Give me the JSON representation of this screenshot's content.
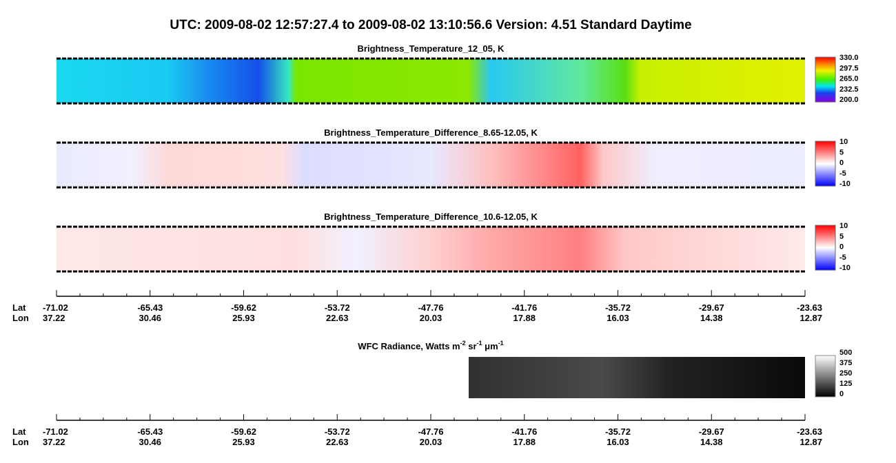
{
  "header": {
    "title": "UTC:  2009-08-02   12:57:27.4  to  2009-08-02   13:10:56.6    Version: 4.51  Standard Daytime"
  },
  "panels": [
    {
      "title": "Brightness_Temperature_12_05, K",
      "colorbar": [
        "330.0",
        "297.5",
        "265.0",
        "232.5",
        "200.0"
      ]
    },
    {
      "title": "Brightness_Temperature_Difference_8.65-12.05, K",
      "colorbar": [
        "10",
        "5",
        "0",
        "-5",
        "-10"
      ]
    },
    {
      "title": "Brightness_Temperature_Difference_10.6-12.05, K",
      "colorbar": [
        "10",
        "5",
        "0",
        "-5",
        "-10"
      ]
    }
  ],
  "track": {
    "lat_label": "Lat",
    "lon_label": "Lon",
    "lat": [
      "-71.02",
      "-65.43",
      "-59.62",
      "-53.72",
      "-47.76",
      "-41.76",
      "-35.72",
      "-29.67",
      "-23.63"
    ],
    "lon": [
      "37.22",
      "30.46",
      "25.93",
      "22.63",
      "20.03",
      "17.88",
      "16.03",
      "14.38",
      "12.87"
    ]
  },
  "wfc": {
    "title": [
      "WFC Radiance, Watts m",
      "-2",
      " sr",
      "-1",
      " μm",
      "-1"
    ],
    "colorbar": [
      "500",
      "375",
      "250",
      "125",
      "0"
    ]
  }
}
